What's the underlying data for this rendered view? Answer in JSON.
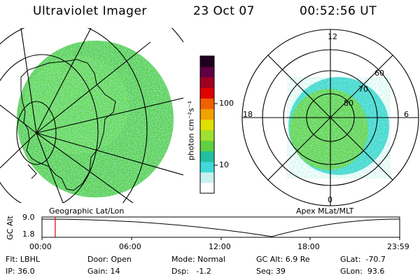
{
  "header": {
    "title": "Ultraviolet Imager",
    "date": "23 Oct 07",
    "time": "00:52:56 UT"
  },
  "left_panel": {
    "label": "Geographic Lat/Lon"
  },
  "right_panel": {
    "label": "Apex MLat/MLT",
    "mlt_labels": [
      "12",
      "18",
      "6",
      "0"
    ],
    "mlat_labels": [
      "60",
      "70",
      "80"
    ]
  },
  "colorbar": {
    "unit_label": "photon cm⁻²s⁻¹",
    "tick_labels": [
      "100",
      "10"
    ],
    "colors": [
      "#ffffff",
      "#c8f0f0",
      "#40d8d8",
      "#20c0a0",
      "#60d040",
      "#a0e030",
      "#e0e000",
      "#f0a000",
      "#f06000",
      "#e00000",
      "#a00020",
      "#600040",
      "#200020"
    ]
  },
  "timeline": {
    "axis_label": "GC Alt",
    "ymax": "9.0",
    "ymin": "1.8",
    "ticks": [
      "00:00",
      "06:00",
      "12:00",
      "18:00",
      "23:59"
    ],
    "marker_fraction": 0.037
  },
  "status": {
    "flt": "Flt: LBHL",
    "ip": "IP: 36.0",
    "door": "Door: Open",
    "gain": "Gain: 14",
    "mode": "Mode: Normal",
    "dsp": "Dsp:   -1.2",
    "gc_alt": "GC Alt: 6.9 Re",
    "seq": "Seq: 39",
    "glat": "GLat:  -70.7",
    "glon": "GLon:  93.6"
  }
}
